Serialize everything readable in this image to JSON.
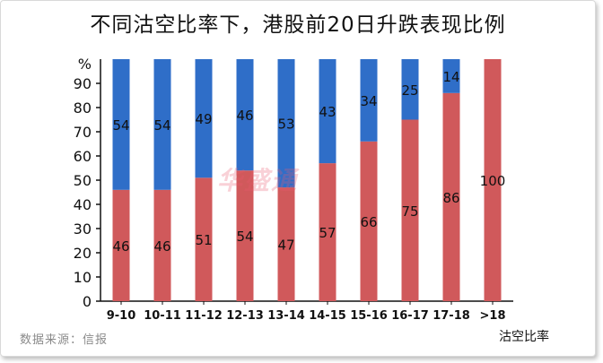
{
  "title": "不同沽空比率下，港股前20日升跌表现比例",
  "source": "数据来源：信报",
  "watermark_text": "华盛通",
  "chart_data": {
    "type": "bar",
    "stacked": true,
    "title": "不同沽空比率下，港股前20日升跌表现比例",
    "xlabel": "沽空比率",
    "ylabel": "%",
    "ylim": [
      0,
      100
    ],
    "yticks": [
      0,
      10,
      20,
      30,
      40,
      50,
      60,
      70,
      80,
      90
    ],
    "categories": [
      "9-10",
      "10-11",
      "11-12",
      "12-13",
      "13-14",
      "14-15",
      "15-16",
      "16-17",
      "17-18",
      ">18"
    ],
    "series": [
      {
        "color": "#d0595b",
        "values": [
          46,
          46,
          51,
          54,
          47,
          57,
          66,
          75,
          86,
          100
        ]
      },
      {
        "color": "#2f6ec8",
        "values": [
          54,
          54,
          49,
          46,
          53,
          43,
          34,
          25,
          14,
          0
        ]
      }
    ],
    "grid": false,
    "legend": "none"
  }
}
